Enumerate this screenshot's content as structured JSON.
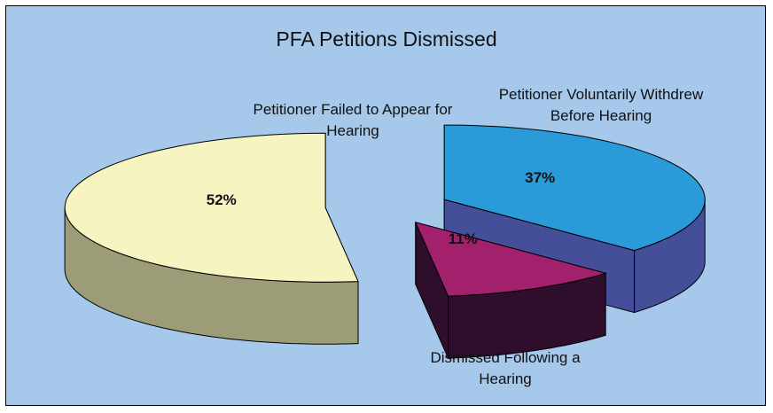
{
  "chart_data": {
    "type": "pie3d",
    "title": "PFA Petitions Dismissed",
    "categories": [
      "Petitioner Voluntarily Withdrew Before Hearing",
      "Dismissed Following a Hearing",
      "Petitioner Failed to Appear for Hearing"
    ],
    "values": [
      37,
      11,
      52
    ],
    "value_labels": [
      "37%",
      "11%",
      "52%"
    ],
    "colors": [
      "#2a9ad8",
      "#a3216c",
      "#f6f4c0"
    ],
    "side_colors": [
      "#454e98",
      "#2e0e2b",
      "#9d9c78"
    ]
  }
}
